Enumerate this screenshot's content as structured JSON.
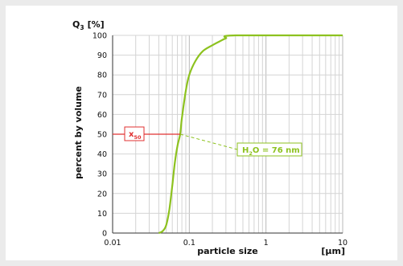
{
  "chart_data": {
    "type": "line",
    "title": "",
    "xlabel": "particle size",
    "xunit": "[µm]",
    "ylabel": "percent by volume",
    "y_axis_symbol": "Q",
    "y_axis_symbol_sub": "3",
    "y_axis_unit": "[%]",
    "xscale": "log",
    "xlim": [
      0.01,
      10
    ],
    "ylim": [
      0,
      100
    ],
    "x_tick_labels": [
      "0.01",
      "0.1",
      "1",
      "10"
    ],
    "y_tick_labels": [
      "0",
      "10",
      "20",
      "30",
      "40",
      "50",
      "60",
      "70",
      "80",
      "90",
      "100"
    ],
    "grid": true,
    "series": [
      {
        "color": "#8dc21f",
        "x": [
          0.04,
          0.045,
          0.05,
          0.055,
          0.06,
          0.065,
          0.07,
          0.076,
          0.08,
          0.09,
          0.1,
          0.12,
          0.15,
          0.2,
          0.25,
          0.3,
          0.4,
          10
        ],
        "y": [
          0,
          1,
          4,
          12,
          24,
          36,
          44,
          50,
          58,
          72,
          80,
          87,
          92,
          95,
          97,
          98.5,
          100,
          100
        ]
      }
    ],
    "marker": {
      "label": "x",
      "label_sub": "50",
      "y": 50,
      "x": 0.076,
      "color": "#e03030"
    },
    "annotation": {
      "text_main": "H",
      "text_sub": "2",
      "text_rest": "O = 76 nm",
      "color": "#8dc21f"
    }
  }
}
